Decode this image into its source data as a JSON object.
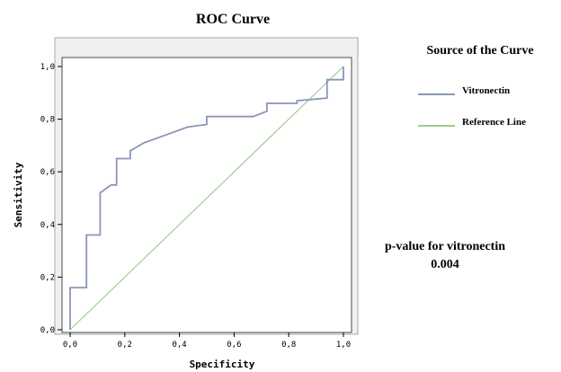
{
  "chart_data": {
    "type": "line",
    "title": "ROC Curve",
    "xlabel": "Specificity",
    "ylabel": "Sensitivity",
    "xlim": [
      0,
      1
    ],
    "ylim": [
      0,
      1
    ],
    "x_ticks": [
      0,
      0.2,
      0.4,
      0.6,
      0.8,
      1.0
    ],
    "y_ticks": [
      0,
      0.2,
      0.4,
      0.6,
      0.8,
      1.0
    ],
    "x_tick_labels": [
      "0,0",
      "0,2",
      "0,4",
      "0,6",
      "0,8",
      "1,0"
    ],
    "y_tick_labels": [
      "0,0",
      "0,2",
      "0,4",
      "0,6",
      "0,8",
      "1,0"
    ],
    "grid": false,
    "legend": {
      "title": "Source of the Curve",
      "position": "right",
      "entries": [
        "Vitronectin",
        "Reference Line"
      ]
    },
    "series": [
      {
        "name": "Vitronectin",
        "color": "#8a96b8",
        "x": [
          0.0,
          0.0,
          0.06,
          0.06,
          0.11,
          0.11,
          0.15,
          0.15,
          0.17,
          0.17,
          0.22,
          0.22,
          0.27,
          0.35,
          0.43,
          0.5,
          0.5,
          0.67,
          0.72,
          0.72,
          0.83,
          0.83,
          0.94,
          0.94,
          1.0,
          1.0
        ],
        "y": [
          0.0,
          0.16,
          0.16,
          0.36,
          0.36,
          0.52,
          0.55,
          0.55,
          0.55,
          0.65,
          0.65,
          0.68,
          0.71,
          0.74,
          0.77,
          0.78,
          0.81,
          0.81,
          0.83,
          0.86,
          0.86,
          0.87,
          0.88,
          0.95,
          0.95,
          1.0
        ]
      },
      {
        "name": "Reference Line",
        "color": "#9fcf8f",
        "x": [
          0,
          1
        ],
        "y": [
          0,
          1
        ]
      }
    ],
    "annotation": {
      "line1": "p-value for vitronectin",
      "line2": "0.004"
    }
  }
}
